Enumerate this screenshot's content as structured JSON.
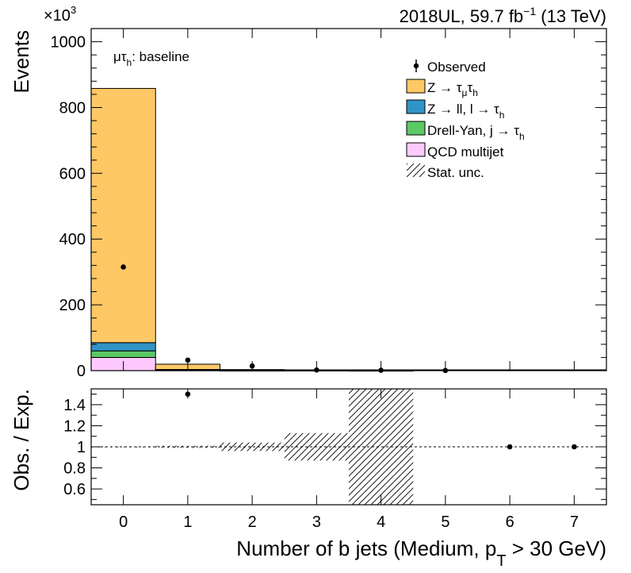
{
  "header": {
    "right_text": "2018UL, 59.7 fb",
    "right_sup": "−1",
    "right_suffix": " (13 TeV)",
    "exponent_label": "×10",
    "exponent_sup": "3"
  },
  "channel_label": {
    "main": "μτ",
    "sub": "h",
    "suffix": ": baseline"
  },
  "legend": {
    "observed": "Observed",
    "ztt": {
      "main": "Z → τ",
      "sub1": "μ",
      "mid": "τ",
      "sub2": "h",
      "color": "#fec865"
    },
    "zll": {
      "main": "Z → ll, l → τ",
      "sub": "h",
      "color": "#3194c6"
    },
    "dyj": {
      "main": "Drell-Yan, j  → τ",
      "sub": "h",
      "color": "#5bc866"
    },
    "qcd": {
      "main": "QCD multijet",
      "color": "#fecafe"
    },
    "unc": "Stat. unc."
  },
  "chart_data": [
    {
      "type": "bar",
      "stacked": true,
      "ylabel": "Events",
      "y_multiplier": 1000,
      "ylim": [
        0,
        1040
      ],
      "yticks": [
        0,
        200,
        400,
        600,
        800,
        1000
      ],
      "xlim": [
        -0.5,
        7.5
      ],
      "categories": [
        "0",
        "1",
        "2",
        "3",
        "4",
        "5",
        "6",
        "7"
      ],
      "series": [
        {
          "name": "QCD multijet",
          "color": "#fecafe",
          "values": [
            40,
            1.2,
            0.3,
            0,
            0,
            0,
            0,
            0
          ]
        },
        {
          "name": "Drell-Yan, j → τh",
          "color": "#5bc866",
          "values": [
            20,
            0.8,
            0.2,
            0,
            0,
            0,
            0,
            0
          ]
        },
        {
          "name": "Z → ll, l → τh",
          "color": "#3194c6",
          "values": [
            25,
            1.5,
            0.3,
            0,
            0,
            0,
            0,
            0
          ]
        },
        {
          "name": "Z → τμτh",
          "color": "#fec865",
          "values": [
            773,
            16,
            2.5,
            0.4,
            0.05,
            0,
            0,
            0
          ]
        }
      ],
      "observed": {
        "name": "Observed",
        "x": [
          0,
          1,
          2,
          3,
          4,
          5
        ],
        "y": [
          315,
          32,
          14,
          2,
          1,
          0.5
        ]
      }
    },
    {
      "type": "scatter",
      "ylabel": "Obs. / Exp.",
      "xlabel": "Number of b jets (Medium, p",
      "xlabel_sub": "T",
      "xlabel_suffix": " > 30 GeV)",
      "ylim": [
        0.45,
        1.55
      ],
      "yticks": [
        0.6,
        0.8,
        1,
        1.2,
        1.4
      ],
      "ytick_labels": [
        "0.6",
        "0.8",
        "1",
        "1.2",
        "1.4"
      ],
      "xlim": [
        -0.5,
        7.5
      ],
      "xticks": [
        0,
        1,
        2,
        3,
        4,
        5,
        6,
        7
      ],
      "xtick_labels": [
        "0",
        "1",
        "2",
        "3",
        "4",
        "5",
        "6",
        "7"
      ],
      "reference_line": 1,
      "points": {
        "x": [
          1,
          6,
          7
        ],
        "y": [
          1.5,
          1.0,
          1.0
        ]
      },
      "uncertainty_band": [
        {
          "x": 0,
          "low": 0.998,
          "high": 1.002
        },
        {
          "x": 1,
          "low": 0.99,
          "high": 1.01
        },
        {
          "x": 2,
          "low": 0.96,
          "high": 1.04
        },
        {
          "x": 3,
          "low": 0.87,
          "high": 1.13
        },
        {
          "x": 4,
          "low": 0.45,
          "high": 1.55
        }
      ]
    }
  ]
}
